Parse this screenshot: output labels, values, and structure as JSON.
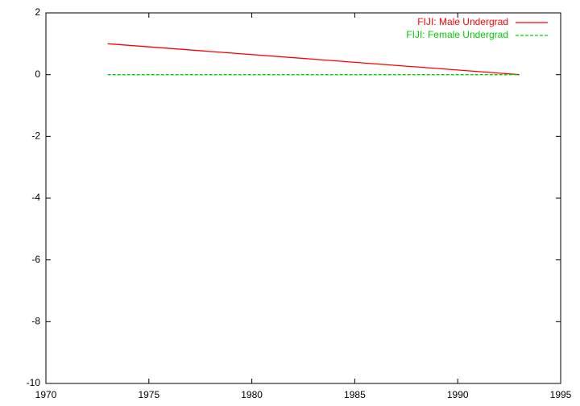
{
  "chart_data": {
    "type": "line",
    "x": [
      1973,
      1993
    ],
    "series": [
      {
        "name": "FIJI: Male Undergrad",
        "color": "#ff0000",
        "dash": false,
        "values": [
          1,
          0
        ]
      },
      {
        "name": "FIJI: Female Undergrad",
        "color": "#00cc00",
        "dash": true,
        "values": [
          0,
          0
        ]
      }
    ],
    "xlim": [
      1970,
      1995
    ],
    "xticks": [
      1970,
      1975,
      1980,
      1985,
      1990,
      1995
    ],
    "ylim": [
      -10,
      2
    ],
    "yticks": [
      -10,
      -8,
      -6,
      -4,
      -2,
      0,
      2
    ],
    "legend": "top-right"
  }
}
